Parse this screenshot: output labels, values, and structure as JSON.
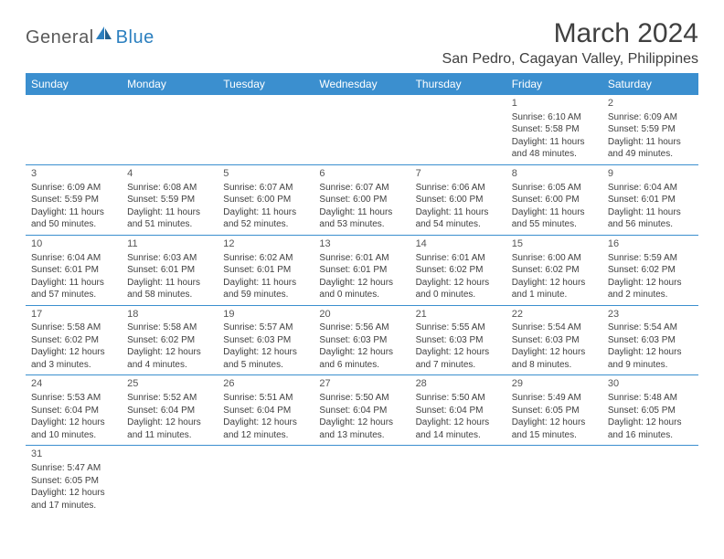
{
  "brand": {
    "general": "General",
    "blue": "Blue"
  },
  "title": "March 2024",
  "location": "San Pedro, Cagayan Valley, Philippines",
  "colors": {
    "header_bg": "#3b8fcf",
    "header_text": "#ffffff",
    "row_border": "#3b8fcf",
    "text": "#404040",
    "logo_gray": "#5a5a5a",
    "logo_blue": "#2b7fbf"
  },
  "day_headers": [
    "Sunday",
    "Monday",
    "Tuesday",
    "Wednesday",
    "Thursday",
    "Friday",
    "Saturday"
  ],
  "weeks": [
    [
      null,
      null,
      null,
      null,
      null,
      {
        "n": "1",
        "sr": "Sunrise: 6:10 AM",
        "ss": "Sunset: 5:58 PM",
        "dl": "Daylight: 11 hours and 48 minutes."
      },
      {
        "n": "2",
        "sr": "Sunrise: 6:09 AM",
        "ss": "Sunset: 5:59 PM",
        "dl": "Daylight: 11 hours and 49 minutes."
      }
    ],
    [
      {
        "n": "3",
        "sr": "Sunrise: 6:09 AM",
        "ss": "Sunset: 5:59 PM",
        "dl": "Daylight: 11 hours and 50 minutes."
      },
      {
        "n": "4",
        "sr": "Sunrise: 6:08 AM",
        "ss": "Sunset: 5:59 PM",
        "dl": "Daylight: 11 hours and 51 minutes."
      },
      {
        "n": "5",
        "sr": "Sunrise: 6:07 AM",
        "ss": "Sunset: 6:00 PM",
        "dl": "Daylight: 11 hours and 52 minutes."
      },
      {
        "n": "6",
        "sr": "Sunrise: 6:07 AM",
        "ss": "Sunset: 6:00 PM",
        "dl": "Daylight: 11 hours and 53 minutes."
      },
      {
        "n": "7",
        "sr": "Sunrise: 6:06 AM",
        "ss": "Sunset: 6:00 PM",
        "dl": "Daylight: 11 hours and 54 minutes."
      },
      {
        "n": "8",
        "sr": "Sunrise: 6:05 AM",
        "ss": "Sunset: 6:00 PM",
        "dl": "Daylight: 11 hours and 55 minutes."
      },
      {
        "n": "9",
        "sr": "Sunrise: 6:04 AM",
        "ss": "Sunset: 6:01 PM",
        "dl": "Daylight: 11 hours and 56 minutes."
      }
    ],
    [
      {
        "n": "10",
        "sr": "Sunrise: 6:04 AM",
        "ss": "Sunset: 6:01 PM",
        "dl": "Daylight: 11 hours and 57 minutes."
      },
      {
        "n": "11",
        "sr": "Sunrise: 6:03 AM",
        "ss": "Sunset: 6:01 PM",
        "dl": "Daylight: 11 hours and 58 minutes."
      },
      {
        "n": "12",
        "sr": "Sunrise: 6:02 AM",
        "ss": "Sunset: 6:01 PM",
        "dl": "Daylight: 11 hours and 59 minutes."
      },
      {
        "n": "13",
        "sr": "Sunrise: 6:01 AM",
        "ss": "Sunset: 6:01 PM",
        "dl": "Daylight: 12 hours and 0 minutes."
      },
      {
        "n": "14",
        "sr": "Sunrise: 6:01 AM",
        "ss": "Sunset: 6:02 PM",
        "dl": "Daylight: 12 hours and 0 minutes."
      },
      {
        "n": "15",
        "sr": "Sunrise: 6:00 AM",
        "ss": "Sunset: 6:02 PM",
        "dl": "Daylight: 12 hours and 1 minute."
      },
      {
        "n": "16",
        "sr": "Sunrise: 5:59 AM",
        "ss": "Sunset: 6:02 PM",
        "dl": "Daylight: 12 hours and 2 minutes."
      }
    ],
    [
      {
        "n": "17",
        "sr": "Sunrise: 5:58 AM",
        "ss": "Sunset: 6:02 PM",
        "dl": "Daylight: 12 hours and 3 minutes."
      },
      {
        "n": "18",
        "sr": "Sunrise: 5:58 AM",
        "ss": "Sunset: 6:02 PM",
        "dl": "Daylight: 12 hours and 4 minutes."
      },
      {
        "n": "19",
        "sr": "Sunrise: 5:57 AM",
        "ss": "Sunset: 6:03 PM",
        "dl": "Daylight: 12 hours and 5 minutes."
      },
      {
        "n": "20",
        "sr": "Sunrise: 5:56 AM",
        "ss": "Sunset: 6:03 PM",
        "dl": "Daylight: 12 hours and 6 minutes."
      },
      {
        "n": "21",
        "sr": "Sunrise: 5:55 AM",
        "ss": "Sunset: 6:03 PM",
        "dl": "Daylight: 12 hours and 7 minutes."
      },
      {
        "n": "22",
        "sr": "Sunrise: 5:54 AM",
        "ss": "Sunset: 6:03 PM",
        "dl": "Daylight: 12 hours and 8 minutes."
      },
      {
        "n": "23",
        "sr": "Sunrise: 5:54 AM",
        "ss": "Sunset: 6:03 PM",
        "dl": "Daylight: 12 hours and 9 minutes."
      }
    ],
    [
      {
        "n": "24",
        "sr": "Sunrise: 5:53 AM",
        "ss": "Sunset: 6:04 PM",
        "dl": "Daylight: 12 hours and 10 minutes."
      },
      {
        "n": "25",
        "sr": "Sunrise: 5:52 AM",
        "ss": "Sunset: 6:04 PM",
        "dl": "Daylight: 12 hours and 11 minutes."
      },
      {
        "n": "26",
        "sr": "Sunrise: 5:51 AM",
        "ss": "Sunset: 6:04 PM",
        "dl": "Daylight: 12 hours and 12 minutes."
      },
      {
        "n": "27",
        "sr": "Sunrise: 5:50 AM",
        "ss": "Sunset: 6:04 PM",
        "dl": "Daylight: 12 hours and 13 minutes."
      },
      {
        "n": "28",
        "sr": "Sunrise: 5:50 AM",
        "ss": "Sunset: 6:04 PM",
        "dl": "Daylight: 12 hours and 14 minutes."
      },
      {
        "n": "29",
        "sr": "Sunrise: 5:49 AM",
        "ss": "Sunset: 6:05 PM",
        "dl": "Daylight: 12 hours and 15 minutes."
      },
      {
        "n": "30",
        "sr": "Sunrise: 5:48 AM",
        "ss": "Sunset: 6:05 PM",
        "dl": "Daylight: 12 hours and 16 minutes."
      }
    ],
    [
      {
        "n": "31",
        "sr": "Sunrise: 5:47 AM",
        "ss": "Sunset: 6:05 PM",
        "dl": "Daylight: 12 hours and 17 minutes."
      },
      null,
      null,
      null,
      null,
      null,
      null
    ]
  ]
}
